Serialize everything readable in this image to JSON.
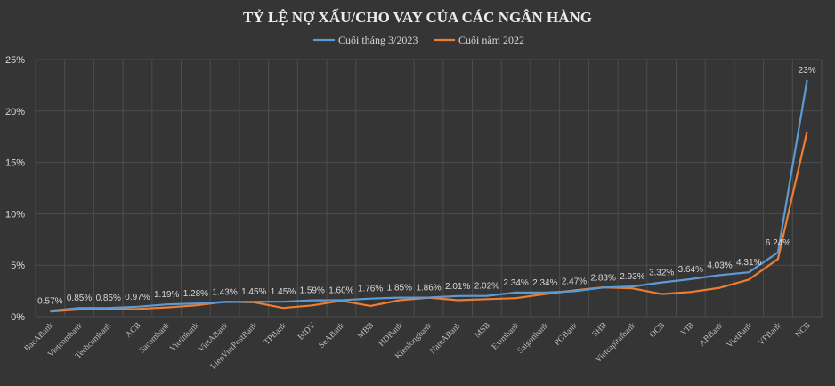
{
  "chart_data": {
    "type": "line",
    "title": "TỶ LỆ NỢ XẤU/CHO VAY CỦA CÁC NGÂN HÀNG",
    "xlabel": "",
    "ylabel": "",
    "ylim": [
      0,
      25
    ],
    "yticks": [
      "0%",
      "5%",
      "10%",
      "15%",
      "20%",
      "25%"
    ],
    "grid": true,
    "legend_position": "top",
    "categories": [
      "BacABank",
      "Vietcombank",
      "Techcombank",
      "ACB",
      "Sacombank",
      "Vietinbank",
      "VietABank",
      "LienVietPostBank",
      "TPBank",
      "BIDV",
      "SeABank",
      "MBB",
      "HDBank",
      "Kienlongbank",
      "NamABank",
      "MSB",
      "Eximbank",
      "Saigonbank",
      "PGBank",
      "SHB",
      "Vietcapitalbank",
      "OCB",
      "VIB",
      "ABBank",
      "VietBank",
      "VPBank",
      "NCB"
    ],
    "series": [
      {
        "name": "Cuối tháng 3/2023",
        "color": "#5b9bd5",
        "values": [
          0.57,
          0.85,
          0.85,
          0.97,
          1.19,
          1.28,
          1.43,
          1.45,
          1.45,
          1.59,
          1.6,
          1.76,
          1.85,
          1.86,
          2.01,
          2.02,
          2.34,
          2.34,
          2.47,
          2.83,
          2.93,
          3.32,
          3.64,
          4.03,
          4.31,
          6.24,
          23.0
        ],
        "labels": [
          "0.57%",
          "0.85%",
          "0.85%",
          "0.97%",
          "1.19%",
          "1.28%",
          "1.43%",
          "1.45%",
          "1.45%",
          "1.59%",
          "1.60%",
          "1.76%",
          "1.85%",
          "1.86%",
          "2.01%",
          "2.02%",
          "2.34%",
          "2.34%",
          "2.47%",
          "2.83%",
          "2.93%",
          "3.32%",
          "3.64%",
          "4.03%",
          "4.31%",
          "6.24%",
          "23%"
        ]
      },
      {
        "name": "Cuối năm 2022",
        "color": "#ed7d31",
        "values": [
          0.5,
          0.7,
          0.7,
          0.75,
          0.9,
          1.1,
          1.45,
          1.4,
          0.85,
          1.1,
          1.55,
          1.05,
          1.6,
          1.85,
          1.6,
          1.7,
          1.8,
          2.2,
          2.55,
          2.85,
          2.75,
          2.2,
          2.4,
          2.8,
          3.6,
          5.6,
          18.0
        ]
      }
    ]
  }
}
